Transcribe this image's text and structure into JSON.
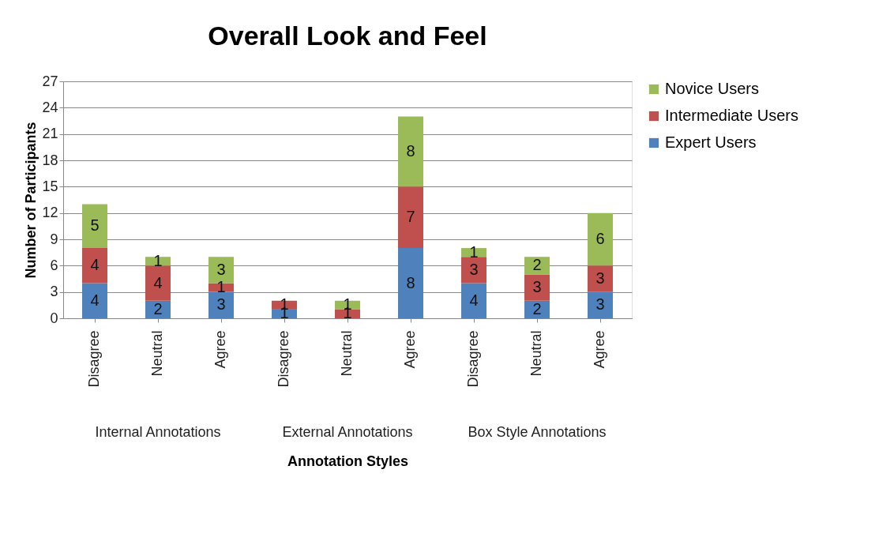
{
  "chart_data": {
    "type": "bar",
    "title": "Overall Look and Feel",
    "xlabel": "Annotation Styles",
    "ylabel": "Number of Participants",
    "categories": [
      "Disagree",
      "Neutral",
      "Agree",
      "Disagree",
      "Neutral",
      "Agree",
      "Disagree",
      "Neutral",
      "Agree"
    ],
    "annotations": [
      "Internal Annotations",
      "External Annotations",
      "Box Style Annotations"
    ],
    "stacked": true,
    "ylim": [
      0,
      27
    ],
    "yticks": [
      0,
      3,
      6,
      9,
      12,
      15,
      18,
      21,
      24,
      27
    ],
    "grid": "y",
    "legend": "right",
    "series": [
      {
        "name": "Expert Users",
        "color": "#4f81bd",
        "values": [
          4,
          2,
          3,
          1,
          0,
          8,
          4,
          2,
          3
        ],
        "value_labels": [
          "4",
          "2",
          "3",
          "1",
          null,
          "8",
          "4",
          "2",
          "3"
        ]
      },
      {
        "name": "Intermediate Users",
        "color": "#c0504d",
        "values": [
          4,
          4,
          1,
          1,
          1,
          7,
          3,
          3,
          3
        ],
        "value_labels": [
          "4",
          "4",
          "1",
          "1",
          "1",
          "7",
          "3",
          "3",
          "3"
        ]
      },
      {
        "name": "Novice Users",
        "color": "#9bbb59",
        "values": [
          5,
          1,
          3,
          0,
          1,
          8,
          1,
          2,
          6
        ],
        "value_labels": [
          "5",
          "1",
          "3",
          null,
          "1",
          "8",
          "1",
          "2",
          "6"
        ]
      }
    ]
  }
}
